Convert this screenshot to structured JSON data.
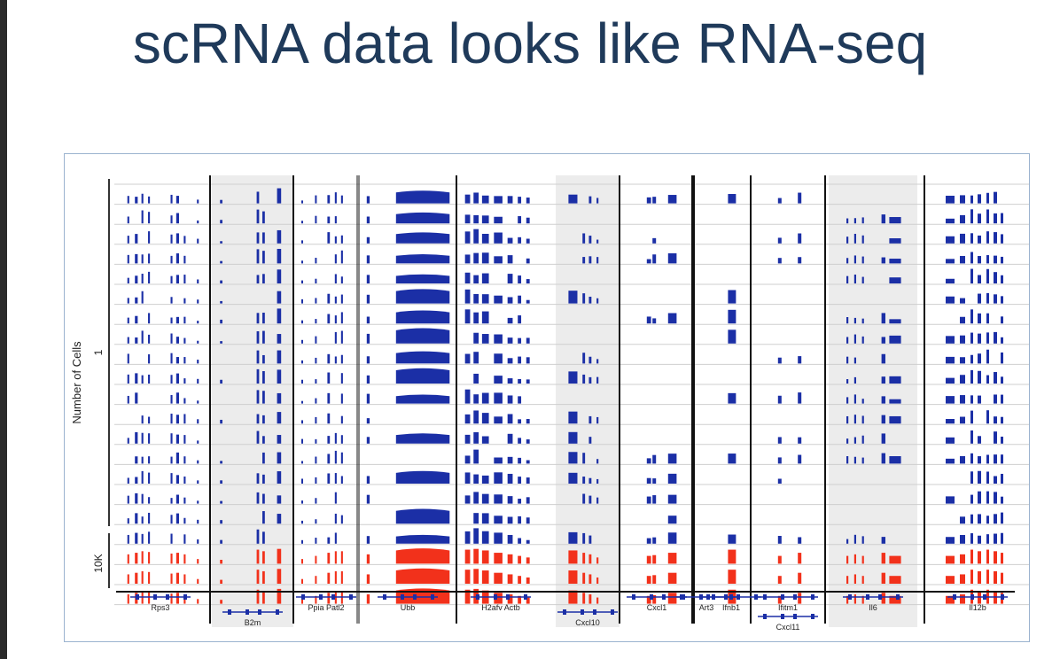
{
  "slide": {
    "title": "scRNA data looks like RNA-seq"
  },
  "figure": {
    "y_axis_label": "Number of Cells",
    "group_labels": [
      "1",
      "10K"
    ],
    "rows": {
      "single_cell_blue": 18,
      "pooled_red": 3
    },
    "colors": {
      "single_cell": "#1b2fa6",
      "pooled": "#f2311b",
      "shade": "#ececec",
      "divider": "#111111",
      "row_line": "#cfcfcf"
    },
    "genes": [
      {
        "name": "Rps3"
      },
      {
        "name": "B2m"
      },
      {
        "name": "Ppia  Patl2"
      },
      {
        "name": "Ubb"
      },
      {
        "name": "H2afv  Actb"
      },
      {
        "name": "Cxcl10"
      },
      {
        "name": "Cxcl1"
      },
      {
        "name": "Art3"
      },
      {
        "name": "Ifnb1"
      },
      {
        "name": "Ifitm1"
      },
      {
        "name": "Cxcl11"
      },
      {
        "name": "Il6"
      },
      {
        "name": "Il12b"
      }
    ]
  }
}
